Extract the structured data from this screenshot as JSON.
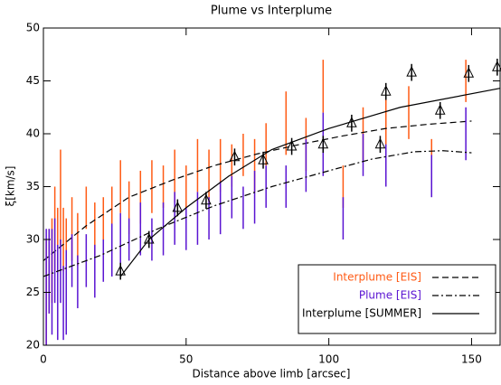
{
  "chart_data": {
    "type": "errorbar",
    "title": "Plume vs Interplume",
    "x_label": "Distance above limb [arcsec]",
    "y_label": "ξ[km/s]",
    "xlim": [
      0,
      160
    ],
    "ylim": [
      20,
      50
    ],
    "xticks": [
      0,
      50,
      100,
      150
    ],
    "yticks": [
      20,
      25,
      30,
      35,
      40,
      45,
      50
    ],
    "legend": "lower right",
    "series": [
      {
        "name": "Interplume [EIS]",
        "color": "#ff5a14",
        "marker": "none",
        "fit_style": "dashed",
        "x": [
          1,
          2,
          3,
          4,
          5,
          6,
          7,
          8,
          10,
          12,
          15,
          18,
          21,
          24,
          27,
          30,
          34,
          38,
          42,
          46,
          50,
          54,
          58,
          62,
          66,
          70,
          74,
          78,
          85,
          92,
          98,
          105,
          112,
          120,
          128,
          136,
          148
        ],
        "values": [
          25,
          27,
          28,
          31,
          30,
          34,
          30,
          29,
          31,
          30,
          33,
          31,
          32,
          33,
          35,
          33,
          34,
          35,
          35,
          36,
          35,
          37,
          36,
          37,
          37,
          38,
          37,
          39,
          41,
          39,
          44.5,
          35,
          40,
          41,
          42,
          37,
          45
        ],
        "errors": [
          5,
          4,
          4,
          4,
          3,
          4.5,
          3,
          3,
          3,
          2.5,
          2,
          2.5,
          2,
          2,
          2.5,
          2.5,
          2.5,
          2.5,
          2,
          2.5,
          2,
          2.5,
          2.5,
          2.5,
          2,
          2,
          2.5,
          2,
          3,
          2.5,
          2.5,
          2,
          2.5,
          2.5,
          2.5,
          2.5,
          2
        ],
        "fit": {
          "x": [
            0,
            15,
            30,
            45,
            60,
            75,
            90,
            105,
            120,
            135,
            150
          ],
          "values": [
            28,
            31.3,
            34,
            35.6,
            37,
            38.1,
            39,
            39.8,
            40.5,
            40.9,
            41.2
          ]
        }
      },
      {
        "name": "Plume [EIS]",
        "color": "#5a14d2",
        "marker": "none",
        "fit_style": "dashdot",
        "x": [
          1,
          2,
          3,
          4,
          5,
          6,
          7,
          8,
          10,
          12,
          15,
          18,
          21,
          24,
          27,
          30,
          34,
          38,
          42,
          46,
          50,
          54,
          58,
          62,
          66,
          70,
          74,
          78,
          85,
          92,
          98,
          105,
          112,
          120,
          136,
          148
        ],
        "values": [
          25,
          27,
          26,
          28,
          25,
          27,
          24,
          25,
          28,
          26,
          28,
          27,
          28,
          29,
          30,
          30,
          31,
          30,
          31,
          32,
          31,
          32,
          32,
          33,
          34,
          33,
          34,
          35,
          35,
          37,
          39,
          32,
          38,
          37,
          36,
          40
        ],
        "errors": [
          6,
          4,
          5,
          4,
          4.5,
          3,
          3.5,
          4,
          2.5,
          2.5,
          2.5,
          2.5,
          2,
          2.5,
          2.5,
          2,
          2.5,
          2,
          2.5,
          2.5,
          2,
          2.5,
          2,
          2.5,
          2,
          2,
          2.5,
          2,
          2,
          2.5,
          3,
          2,
          2,
          2,
          2,
          2.5
        ],
        "fit": {
          "x": [
            0,
            20,
            40,
            60,
            80,
            100,
            115,
            130,
            140,
            150
          ],
          "values": [
            26.5,
            28.5,
            31,
            33.2,
            35,
            36.5,
            37.6,
            38.3,
            38.4,
            38.2
          ]
        }
      },
      {
        "name": "Interplume [SUMMER]",
        "color": "#000000",
        "marker": "triangle",
        "fit_style": "solid",
        "x": [
          27,
          37,
          47,
          57,
          67,
          77,
          87,
          98,
          108,
          118,
          120,
          129,
          139,
          149,
          159
        ],
        "values": [
          27,
          30,
          33,
          33.7,
          37.8,
          37.5,
          38.8,
          39,
          41,
          39,
          44,
          45.8,
          42.2,
          45.7,
          46.3
        ],
        "errors": [
          0.8,
          0.8,
          0.8,
          0.8,
          0.8,
          0.8,
          0.8,
          0.8,
          0.8,
          0.8,
          0.8,
          0.8,
          0.8,
          0.8,
          0.8
        ],
        "fit": {
          "x": [
            27,
            37,
            50,
            65,
            80,
            100,
            125,
            160
          ],
          "values": [
            26.5,
            30,
            33,
            36,
            38.5,
            40.5,
            42.5,
            44.3
          ]
        }
      }
    ]
  }
}
